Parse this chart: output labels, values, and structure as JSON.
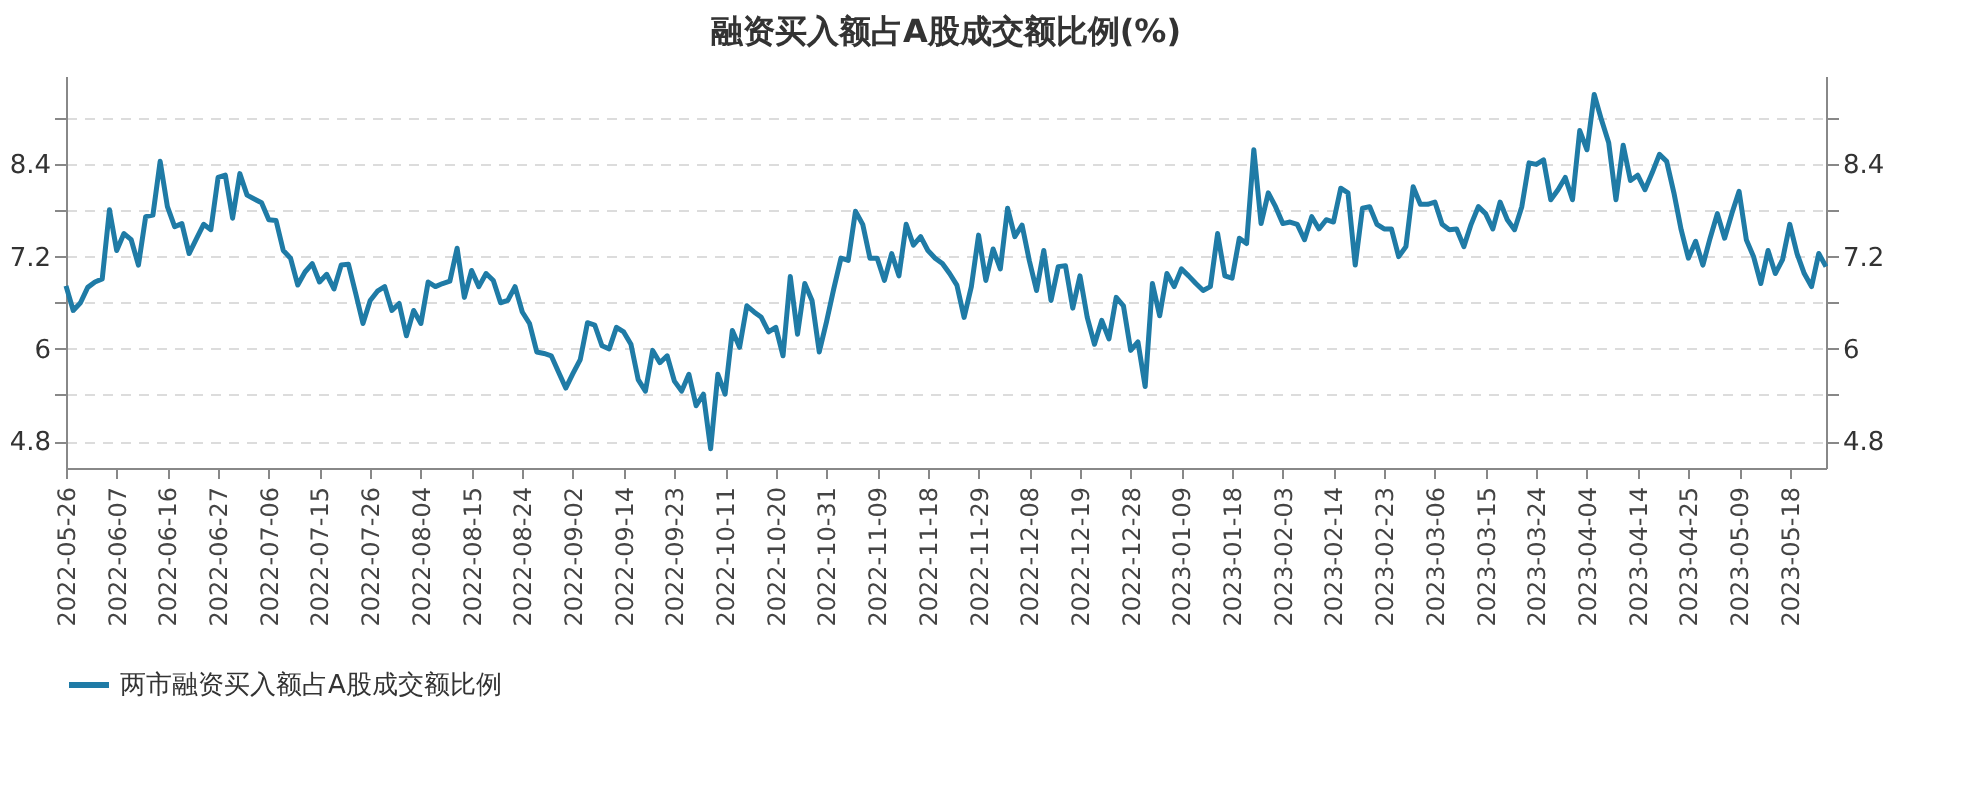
{
  "chart_data": {
    "type": "line",
    "title": "融资买入额占A股成交额比例(%)",
    "categories": [
      "2022-05-26",
      null,
      null,
      null,
      null,
      null,
      null,
      "2022-06-07",
      null,
      null,
      null,
      null,
      null,
      null,
      "2022-06-16",
      null,
      null,
      null,
      null,
      null,
      null,
      "2022-06-27",
      null,
      null,
      null,
      null,
      null,
      null,
      "2022-07-06",
      null,
      null,
      null,
      null,
      null,
      null,
      "2022-07-15",
      null,
      null,
      null,
      null,
      null,
      null,
      "2022-07-26",
      null,
      null,
      null,
      null,
      null,
      null,
      "2022-08-04",
      null,
      null,
      null,
      null,
      null,
      null,
      "2022-08-15",
      null,
      null,
      null,
      null,
      null,
      null,
      "2022-08-24",
      null,
      null,
      null,
      null,
      null,
      null,
      "2022-09-02",
      null,
      null,
      null,
      null,
      null,
      null,
      "2022-09-14",
      null,
      null,
      null,
      null,
      null,
      null,
      "2022-09-23",
      null,
      null,
      null,
      null,
      null,
      null,
      "2022-10-11",
      null,
      null,
      null,
      null,
      null,
      null,
      "2022-10-20",
      null,
      null,
      null,
      null,
      null,
      null,
      "2022-10-31",
      null,
      null,
      null,
      null,
      null,
      null,
      "2022-11-09",
      null,
      null,
      null,
      null,
      null,
      null,
      "2022-11-18",
      null,
      null,
      null,
      null,
      null,
      null,
      "2022-11-29",
      null,
      null,
      null,
      null,
      null,
      null,
      "2022-12-08",
      null,
      null,
      null,
      null,
      null,
      null,
      "2022-12-19",
      null,
      null,
      null,
      null,
      null,
      null,
      "2022-12-28",
      null,
      null,
      null,
      null,
      null,
      null,
      "2023-01-09",
      null,
      null,
      null,
      null,
      null,
      null,
      "2023-01-18",
      null,
      null,
      null,
      null,
      null,
      null,
      "2023-02-03",
      null,
      null,
      null,
      null,
      null,
      null,
      "2023-02-14",
      null,
      null,
      null,
      null,
      null,
      null,
      "2023-02-23",
      null,
      null,
      null,
      null,
      null,
      null,
      "2023-03-06",
      null,
      null,
      null,
      null,
      null,
      null,
      "2023-03-15",
      null,
      null,
      null,
      null,
      null,
      null,
      "2023-03-24",
      null,
      null,
      null,
      null,
      null,
      null,
      "2023-04-04",
      null,
      null,
      null,
      null,
      null,
      null,
      "2023-04-14",
      null,
      null,
      null,
      null,
      null,
      null,
      "2023-04-25",
      null,
      null,
      null,
      null,
      null,
      null,
      "2023-05-09",
      null,
      null,
      null,
      null,
      null,
      null,
      "2023-05-18",
      null,
      null,
      null,
      null,
      null
    ],
    "series": [
      {
        "name": "两市融资买入额占A股成交额比例",
        "color": "#1f7ba6",
        "values": [
          6.82,
          6.5,
          6.6,
          6.8,
          6.87,
          6.91,
          7.81,
          7.28,
          7.5,
          7.42,
          7.09,
          7.72,
          7.74,
          8.44,
          7.85,
          7.59,
          7.63,
          7.24,
          7.43,
          7.62,
          7.55,
          8.23,
          8.26,
          7.7,
          8.28,
          8.0,
          7.95,
          7.9,
          7.68,
          7.67,
          7.28,
          7.18,
          6.83,
          7.0,
          7.11,
          6.87,
          6.97,
          6.78,
          7.09,
          7.1,
          6.72,
          6.33,
          6.63,
          6.75,
          6.81,
          6.5,
          6.59,
          6.17,
          6.5,
          6.33,
          6.87,
          6.81,
          6.85,
          6.88,
          7.31,
          6.67,
          7.02,
          6.81,
          6.98,
          6.89,
          6.6,
          6.63,
          6.81,
          6.48,
          6.33,
          5.96,
          5.94,
          5.91,
          5.7,
          5.49,
          5.68,
          5.86,
          6.34,
          6.31,
          6.04,
          6.0,
          6.28,
          6.22,
          6.06,
          5.6,
          5.45,
          5.98,
          5.82,
          5.91,
          5.58,
          5.45,
          5.67,
          5.26,
          5.41,
          4.7,
          5.67,
          5.41,
          6.24,
          6.02,
          6.56,
          6.48,
          6.41,
          6.22,
          6.28,
          5.91,
          6.94,
          6.19,
          6.85,
          6.63,
          5.96,
          6.35,
          6.78,
          7.18,
          7.15,
          7.79,
          7.62,
          7.18,
          7.18,
          6.89,
          7.24,
          6.95,
          7.62,
          7.35,
          7.46,
          7.28,
          7.18,
          7.11,
          6.98,
          6.83,
          6.41,
          6.81,
          7.48,
          6.89,
          7.3,
          7.04,
          7.83,
          7.46,
          7.61,
          7.15,
          6.76,
          7.28,
          6.63,
          7.07,
          7.08,
          6.53,
          6.95,
          6.41,
          6.06,
          6.37,
          6.13,
          6.67,
          6.56,
          5.98,
          6.09,
          5.51,
          6.85,
          6.43,
          6.98,
          6.81,
          7.04,
          6.95,
          6.85,
          6.76,
          6.81,
          7.5,
          6.95,
          6.92,
          7.44,
          7.37,
          8.59,
          7.63,
          8.03,
          7.85,
          7.63,
          7.65,
          7.62,
          7.42,
          7.72,
          7.56,
          7.68,
          7.65,
          8.09,
          8.03,
          7.09,
          7.83,
          7.85,
          7.62,
          7.56,
          7.56,
          7.2,
          7.33,
          8.11,
          7.88,
          7.88,
          7.91,
          7.62,
          7.55,
          7.56,
          7.33,
          7.62,
          7.85,
          7.76,
          7.56,
          7.91,
          7.68,
          7.55,
          7.85,
          8.42,
          8.4,
          8.46,
          7.94,
          8.07,
          8.23,
          7.94,
          8.84,
          8.59,
          9.31,
          8.98,
          8.68,
          7.94,
          8.65,
          8.19,
          8.26,
          8.07,
          8.29,
          8.53,
          8.44,
          8.03,
          7.55,
          7.18,
          7.4,
          7.09,
          7.44,
          7.76,
          7.44,
          7.76,
          8.05,
          7.42,
          7.2,
          6.85,
          7.28,
          6.98,
          7.16,
          7.62,
          7.24,
          6.98,
          6.81,
          7.24,
          7.07
        ]
      }
    ],
    "ylim": [
      4.45,
      9.55
    ],
    "yticks": [
      4.8,
      {
        "value": 5.4,
        "label": null
      },
      6,
      {
        "value": 6.6,
        "label": null
      },
      7.2,
      {
        "value": 7.8,
        "label": null
      },
      8.4,
      {
        "value": 9.0,
        "label": null
      }
    ],
    "y2lim": [
      4.45,
      9.55
    ],
    "y2ticks": [
      4.8,
      {
        "value": 5.4,
        "label": null
      },
      6,
      {
        "value": 6.6,
        "label": null
      },
      7.2,
      {
        "value": 7.8,
        "label": null
      },
      8.4,
      {
        "value": 9.0,
        "label": null
      }
    ],
    "grid": "y",
    "legend": "bottom",
    "marker": "none",
    "line_style": "solid"
  }
}
